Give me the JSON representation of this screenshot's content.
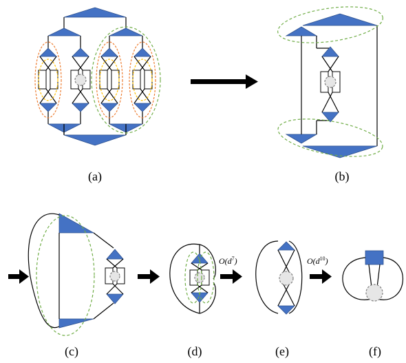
{
  "panels": {
    "a": {
      "caption": "(a)"
    },
    "b": {
      "caption": "(b)"
    },
    "c": {
      "caption": "(c)"
    },
    "d": {
      "caption": "(d)"
    },
    "e": {
      "caption": "(e)"
    },
    "f": {
      "caption": "(f)"
    }
  },
  "costs": {
    "d_to_e": {
      "base": "O(d",
      "exp": "7",
      "close": ")"
    },
    "e_to_f": {
      "base": "O(d",
      "exp": "10",
      "close": ")"
    }
  },
  "colors": {
    "tensor_fill": "#4472c4",
    "group_green": "#70ad47",
    "group_orange": "#ed7d31",
    "group_yellow": "#ffc000",
    "core_grey": "#e6e6e6"
  }
}
